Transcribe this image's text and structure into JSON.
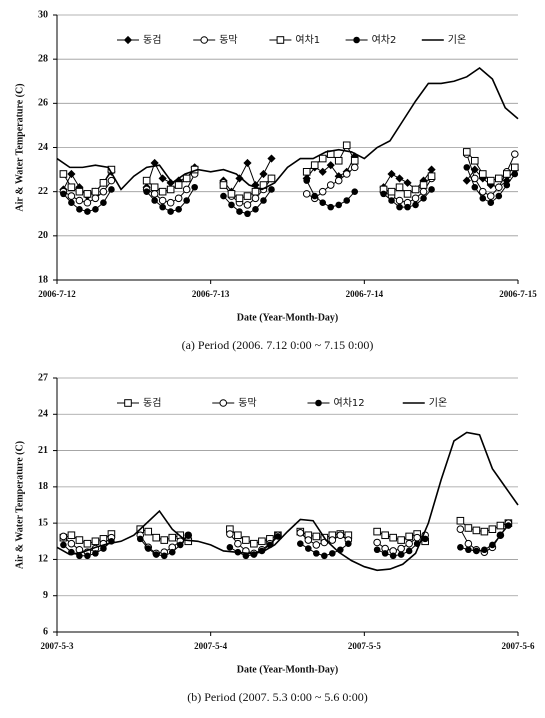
{
  "chart_data": [
    {
      "type": "line",
      "x_label": "Date (Year-Month-Day)",
      "y_label": "Air & Water Temperature (C)",
      "caption": "(a)  Period  (2006. 7.12  0:00  ~  7.15  0:00)",
      "xlim": [
        0,
        72
      ],
      "xticks": [
        {
          "value": 0,
          "label": "2006-7-12"
        },
        {
          "value": 24,
          "label": "2006-7-13"
        },
        {
          "value": 48,
          "label": "2006-7-14"
        },
        {
          "value": 72,
          "label": "2006-7-15"
        }
      ],
      "ylim": [
        18,
        30
      ],
      "yticks": [
        18,
        20,
        22,
        24,
        26,
        28,
        30
      ],
      "grid": true,
      "legend": "top",
      "series": [
        {
          "name": "동검",
          "color": "#000000",
          "marker": "diamond",
          "x": [
            1,
            2.25,
            3.5,
            4.75,
            6,
            7.25,
            8.5,
            11,
            14,
            15.25,
            16.5,
            17.75,
            19,
            20.25,
            21.5,
            24,
            26,
            27.25,
            28.5,
            29.75,
            31,
            32.25,
            33.5,
            37,
            39,
            40.25,
            41.5,
            42.75,
            44,
            45.25,
            46.5,
            49,
            51,
            52.25,
            53.5,
            54.75,
            56,
            57.25,
            58.5,
            62,
            64,
            65.25,
            66.5,
            67.75,
            69,
            70.25,
            71.5
          ],
          "values": [
            22.1,
            22.8,
            22.2,
            21.8,
            22.0,
            22.4,
            22.9,
            null,
            22.2,
            23.3,
            22.6,
            22.4,
            22.5,
            22.6,
            23.1,
            null,
            22.5,
            22.0,
            22.6,
            23.3,
            22.3,
            22.8,
            23.5,
            null,
            22.6,
            23.1,
            22.9,
            23.2,
            22.7,
            22.9,
            23.6,
            null,
            22.2,
            22.8,
            22.6,
            22.4,
            22.1,
            22.5,
            23.0,
            null,
            22.5,
            23.0,
            22.6,
            22.3,
            22.2,
            22.5,
            23.0
          ]
        },
        {
          "name": "동막",
          "color": "#000000",
          "marker": "circle-open",
          "x": [
            1,
            2.25,
            3.5,
            4.75,
            6,
            7.25,
            8.5,
            11,
            14,
            15.25,
            16.5,
            17.75,
            19,
            20.25,
            21.5,
            24,
            26,
            27.25,
            28.5,
            29.75,
            31,
            32.25,
            33.5,
            37,
            39,
            40.25,
            41.5,
            42.75,
            44,
            45.25,
            46.5,
            49,
            51,
            52.25,
            53.5,
            54.75,
            56,
            57.25,
            58.5,
            62,
            64,
            65.25,
            66.5,
            67.75,
            69,
            70.25,
            71.5
          ],
          "values": [
            22.0,
            21.8,
            21.6,
            21.5,
            21.7,
            22.0,
            22.5,
            null,
            22.1,
            21.9,
            21.6,
            21.5,
            21.7,
            22.1,
            22.8,
            null,
            22.4,
            21.8,
            21.5,
            21.4,
            21.7,
            22.1,
            22.6,
            null,
            21.9,
            21.7,
            22.0,
            22.3,
            22.5,
            22.8,
            23.1,
            null,
            22.0,
            21.8,
            21.6,
            21.5,
            21.7,
            22.0,
            22.6,
            null,
            23.7,
            22.6,
            22.0,
            21.8,
            22.2,
            22.9,
            23.7
          ]
        },
        {
          "name": "여차1",
          "color": "#000000",
          "marker": "square-open",
          "x": [
            1,
            2.25,
            3.5,
            4.75,
            6,
            7.25,
            8.5,
            11,
            14,
            15.25,
            16.5,
            17.75,
            19,
            20.25,
            21.5,
            24,
            26,
            27.25,
            28.5,
            29.75,
            31,
            32.25,
            33.5,
            37,
            39,
            40.25,
            41.5,
            42.75,
            44,
            45.25,
            46.5,
            49,
            51,
            52.25,
            53.5,
            54.75,
            56,
            57.25,
            58.5,
            62,
            64,
            65.25,
            66.5,
            67.75,
            69,
            70.25,
            71.5
          ],
          "values": [
            22.8,
            22.2,
            22.0,
            21.9,
            22.0,
            22.4,
            23.0,
            null,
            22.5,
            22.2,
            22.0,
            22.1,
            22.3,
            22.6,
            23.0,
            null,
            22.3,
            21.9,
            21.7,
            21.8,
            22.0,
            22.3,
            22.6,
            null,
            22.9,
            23.2,
            23.5,
            23.7,
            23.4,
            24.1,
            23.4,
            null,
            22.1,
            22.0,
            22.2,
            21.9,
            22.1,
            22.3,
            22.7,
            null,
            23.8,
            23.4,
            22.8,
            22.5,
            22.6,
            22.8,
            23.1
          ]
        },
        {
          "name": "여차2",
          "color": "#000000",
          "marker": "circle",
          "x": [
            1,
            2.25,
            3.5,
            4.75,
            6,
            7.25,
            8.5,
            11,
            14,
            15.25,
            16.5,
            17.75,
            19,
            20.25,
            21.5,
            24,
            26,
            27.25,
            28.5,
            29.75,
            31,
            32.25,
            33.5,
            37,
            39,
            40.25,
            41.5,
            42.75,
            44,
            45.25,
            46.5,
            49,
            51,
            52.25,
            53.5,
            54.75,
            56,
            57.25,
            58.5,
            62,
            64,
            65.25,
            66.5,
            67.75,
            69,
            70.25,
            71.5
          ],
          "values": [
            21.9,
            21.5,
            21.2,
            21.1,
            21.2,
            21.5,
            22.1,
            null,
            22.0,
            21.6,
            21.3,
            21.1,
            21.2,
            21.6,
            22.2,
            null,
            21.8,
            21.4,
            21.1,
            21.0,
            21.2,
            21.6,
            22.1,
            null,
            22.5,
            21.8,
            21.5,
            21.3,
            21.4,
            21.6,
            22.0,
            null,
            21.9,
            21.6,
            21.3,
            21.3,
            21.4,
            21.7,
            22.1,
            null,
            23.1,
            22.2,
            21.7,
            21.5,
            21.8,
            22.3,
            22.8
          ]
        },
        {
          "name": "기온",
          "color": "#000000",
          "marker": "none",
          "x": [
            0,
            2,
            4,
            6,
            8,
            10,
            12,
            14,
            16,
            18,
            20,
            22,
            24,
            26,
            28,
            30,
            32,
            34,
            36,
            38,
            40,
            42,
            44,
            46,
            48,
            50,
            52,
            54,
            56,
            58,
            60,
            62,
            64,
            66,
            68,
            70,
            72
          ],
          "values": [
            23.5,
            23.1,
            23.1,
            23.2,
            23.1,
            22.1,
            22.7,
            23.1,
            23.2,
            22.4,
            22.8,
            23.0,
            22.9,
            23.0,
            22.8,
            22.3,
            22.1,
            22.4,
            23.1,
            23.5,
            23.5,
            23.8,
            23.9,
            23.8,
            23.5,
            24.0,
            24.3,
            25.2,
            26.1,
            26.9,
            26.9,
            27.0,
            27.2,
            27.6,
            27.1,
            25.8,
            25.3
          ]
        }
      ]
    },
    {
      "type": "line",
      "x_label": "Date (Year-Month-Day)",
      "y_label": "Air & Water Temperature (C)",
      "caption": "(b)  Period  (2007.  5.3  0:00  ~  5.6  0:00)",
      "xlim": [
        0,
        72
      ],
      "xticks": [
        {
          "value": 0,
          "label": "2007-5-3"
        },
        {
          "value": 24,
          "label": "2007-5-4"
        },
        {
          "value": 48,
          "label": "2007-5-5"
        },
        {
          "value": 72,
          "label": "2007-5-6"
        }
      ],
      "ylim": [
        6,
        27
      ],
      "yticks": [
        6,
        9,
        12,
        15,
        18,
        21,
        24,
        27
      ],
      "grid": true,
      "legend": "top",
      "series": [
        {
          "name": "동검",
          "color": "#000000",
          "marker": "square-open",
          "x": [
            1,
            2.25,
            3.5,
            4.75,
            6,
            7.25,
            8.5,
            10,
            13,
            14.25,
            15.5,
            16.75,
            18,
            19.25,
            20.5,
            23,
            27,
            28.25,
            29.5,
            30.75,
            32,
            33.25,
            34.5,
            36,
            38,
            39.25,
            40.5,
            41.75,
            43,
            44.25,
            45.5,
            48,
            50,
            51.25,
            52.5,
            53.75,
            55,
            56.25,
            57.5,
            60,
            63,
            64.25,
            65.5,
            66.75,
            68,
            69.25,
            70.5
          ],
          "values": [
            13.8,
            14.0,
            13.6,
            13.3,
            13.5,
            13.7,
            14.1,
            null,
            14.5,
            14.3,
            13.8,
            13.6,
            13.8,
            14.0,
            13.5,
            null,
            14.5,
            14.0,
            13.6,
            13.3,
            13.5,
            13.7,
            14.0,
            null,
            14.3,
            14.0,
            13.9,
            13.8,
            14.0,
            14.1,
            14.0,
            null,
            14.3,
            14.0,
            13.8,
            13.6,
            13.9,
            14.1,
            13.5,
            null,
            15.2,
            14.6,
            14.4,
            14.3,
            14.5,
            14.8,
            15.0
          ]
        },
        {
          "name": "동막",
          "color": "#000000",
          "marker": "circle-open",
          "x": [
            1,
            2.25,
            3.5,
            4.75,
            6,
            7.25,
            8.5,
            10,
            13,
            14.25,
            15.5,
            16.75,
            18,
            19.25,
            20.5,
            23,
            27,
            28.25,
            29.5,
            30.75,
            32,
            33.25,
            34.5,
            36,
            38,
            39.25,
            40.5,
            41.75,
            43,
            44.25,
            45.5,
            48,
            50,
            51.25,
            52.5,
            53.75,
            55,
            56.25,
            57.5,
            60,
            63,
            64.25,
            65.5,
            66.75,
            68,
            69.25,
            70.5
          ],
          "values": [
            13.9,
            13.3,
            12.8,
            12.6,
            12.9,
            13.3,
            13.8,
            null,
            14.0,
            13.0,
            12.5,
            12.6,
            13.0,
            13.5,
            14.0,
            null,
            14.1,
            13.3,
            12.7,
            12.5,
            12.8,
            13.3,
            14.0,
            null,
            14.2,
            13.6,
            13.2,
            13.4,
            13.6,
            14.0,
            13.6,
            null,
            13.4,
            12.9,
            12.7,
            12.9,
            13.3,
            13.8,
            14.0,
            null,
            14.5,
            13.3,
            12.8,
            12.6,
            13.0,
            14.0,
            15.0
          ]
        },
        {
          "name": "여차12",
          "color": "#000000",
          "marker": "circle",
          "x": [
            1,
            2.25,
            3.5,
            4.75,
            6,
            7.25,
            8.5,
            10,
            13,
            14.25,
            15.5,
            16.75,
            18,
            19.25,
            20.5,
            23,
            27,
            28.25,
            29.5,
            30.75,
            32,
            33.25,
            34.5,
            36,
            38,
            39.25,
            40.5,
            41.75,
            43,
            44.25,
            45.5,
            48,
            50,
            51.25,
            52.5,
            53.75,
            55,
            56.25,
            57.5,
            60,
            63,
            64.25,
            65.5,
            66.75,
            68,
            69.25,
            70.5
          ],
          "values": [
            13.2,
            12.6,
            12.3,
            12.3,
            12.5,
            12.9,
            13.5,
            null,
            13.7,
            12.9,
            12.4,
            12.3,
            12.6,
            13.2,
            14.0,
            null,
            13.0,
            12.6,
            12.3,
            12.4,
            12.7,
            13.2,
            13.9,
            null,
            13.3,
            12.9,
            12.5,
            12.3,
            12.5,
            12.8,
            13.3,
            null,
            12.8,
            12.5,
            12.3,
            12.4,
            12.7,
            13.3,
            13.7,
            null,
            13.0,
            12.8,
            12.7,
            12.8,
            13.2,
            14.0,
            14.8
          ]
        },
        {
          "name": "기온",
          "color": "#000000",
          "marker": "none",
          "x": [
            0,
            2,
            4,
            6,
            8,
            10,
            12,
            14,
            16,
            18,
            20,
            22,
            24,
            26,
            28,
            30,
            32,
            34,
            36,
            38,
            40,
            42,
            44,
            46,
            48,
            50,
            52,
            54,
            56,
            58,
            60,
            62,
            64,
            66,
            68,
            70,
            72
          ],
          "values": [
            13.0,
            12.4,
            12.6,
            13.0,
            13.3,
            13.5,
            14.0,
            15.0,
            16.0,
            14.5,
            13.6,
            13.5,
            13.2,
            12.7,
            12.6,
            12.5,
            12.6,
            13.2,
            14.3,
            15.3,
            15.2,
            13.6,
            12.6,
            11.9,
            11.4,
            11.1,
            11.2,
            11.6,
            12.5,
            15.0,
            18.6,
            21.8,
            22.5,
            22.3,
            19.5,
            18.0,
            16.5
          ]
        }
      ]
    }
  ]
}
